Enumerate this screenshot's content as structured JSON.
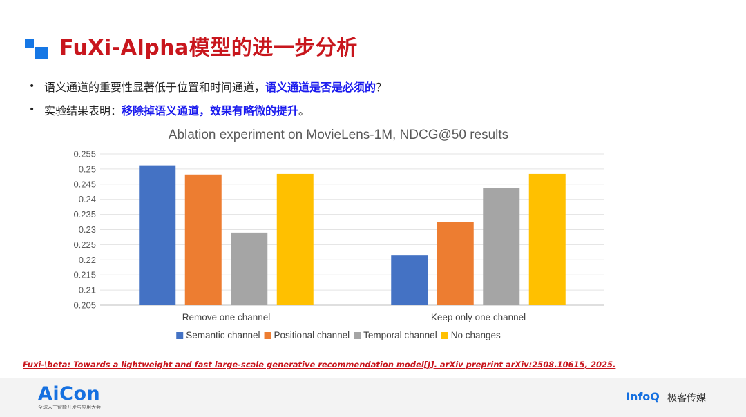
{
  "slide": {
    "title": "FuXi-Alpha模型的进一步分析",
    "bullet1_plain": "语义通道的重要性显著低于位置和时间通道，",
    "bullet1_highlight": "语义通道是否是必须的",
    "bullet1_end": "？",
    "bullet2_plain": "实验结果表明：",
    "bullet2_highlight": "移除掉语义通道，效果有略微的提升",
    "bullet2_end": "。",
    "bullet_symbol": "•",
    "reference": "Fuxi-\\beta: Towards a lightweight and fast large-scale generative recommendation model[J]. arXiv preprint arXiv:2508.10615, 2025."
  },
  "footer": {
    "brand": "AiCon",
    "brand_sub": "全球人工智能开发与应用大会",
    "partner": "InfoQ",
    "partner_cn": "极客传媒"
  },
  "chart_data": {
    "type": "bar",
    "title": "Ablation experiment on MovieLens-1M, NDCG@50 results",
    "categories": [
      "Remove one channel",
      "Keep only one channel"
    ],
    "series": [
      {
        "name": "Semantic channel",
        "color": "#4472c4",
        "values": [
          0.2512,
          0.2214
        ]
      },
      {
        "name": "Positional channel",
        "color": "#ed7d31",
        "values": [
          0.2482,
          0.2325
        ]
      },
      {
        "name": "Temporal channel",
        "color": "#a5a5a5",
        "values": [
          0.229,
          0.2437
        ]
      },
      {
        "name": "No changes",
        "color": "#ffc000",
        "values": [
          0.2484,
          0.2484
        ]
      }
    ],
    "ylim": [
      0.205,
      0.255
    ],
    "yticks": [
      "0.255",
      "0.25",
      "0.245",
      "0.24",
      "0.235",
      "0.23",
      "0.225",
      "0.22",
      "0.215",
      "0.21",
      "0.205"
    ],
    "grid": true,
    "legend": "bottom"
  }
}
